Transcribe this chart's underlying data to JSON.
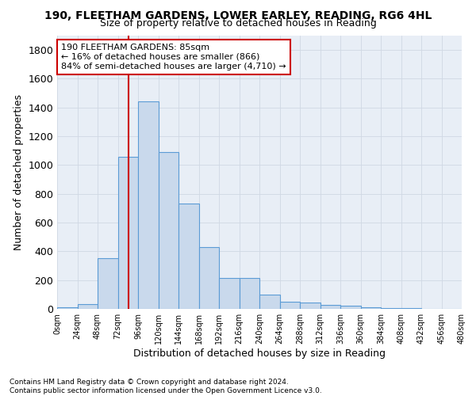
{
  "title_line1": "190, FLEETHAM GARDENS, LOWER EARLEY, READING, RG6 4HL",
  "title_line2": "Size of property relative to detached houses in Reading",
  "xlabel": "Distribution of detached houses by size in Reading",
  "ylabel": "Number of detached properties",
  "bar_color": "#c9d9ec",
  "bar_edge_color": "#5b9bd5",
  "grid_color": "#d0d8e4",
  "background_color": "#e8eef6",
  "annotation_text": "190 FLEETHAM GARDENS: 85sqm\n← 16% of detached houses are smaller (866)\n84% of semi-detached houses are larger (4,710) →",
  "annotation_box_color": "#cc0000",
  "vline_x": 85,
  "vline_color": "#cc0000",
  "bin_edges": [
    0,
    24,
    48,
    72,
    96,
    120,
    144,
    168,
    192,
    216,
    240,
    264,
    288,
    312,
    336,
    360,
    384,
    408,
    432,
    456,
    480
  ],
  "bar_heights": [
    10,
    35,
    350,
    1055,
    1445,
    1090,
    730,
    430,
    215,
    215,
    100,
    50,
    45,
    30,
    20,
    10,
    5,
    3,
    2,
    1
  ],
  "ylim": [
    0,
    1900
  ],
  "xlim": [
    0,
    480
  ],
  "footnote": "Contains HM Land Registry data © Crown copyright and database right 2024.\nContains public sector information licensed under the Open Government Licence v3.0.",
  "tick_labels": [
    "0sqm",
    "24sqm",
    "48sqm",
    "72sqm",
    "96sqm",
    "120sqm",
    "144sqm",
    "168sqm",
    "192sqm",
    "216sqm",
    "240sqm",
    "264sqm",
    "288sqm",
    "312sqm",
    "336sqm",
    "360sqm",
    "384sqm",
    "408sqm",
    "432sqm",
    "456sqm",
    "480sqm"
  ],
  "yticks": [
    0,
    200,
    400,
    600,
    800,
    1000,
    1200,
    1400,
    1600,
    1800
  ],
  "title_fontsize": 10,
  "subtitle_fontsize": 9,
  "xlabel_fontsize": 9,
  "ylabel_fontsize": 9,
  "xtick_fontsize": 7,
  "ytick_fontsize": 9,
  "footnote_fontsize": 6.5,
  "annot_fontsize": 8
}
